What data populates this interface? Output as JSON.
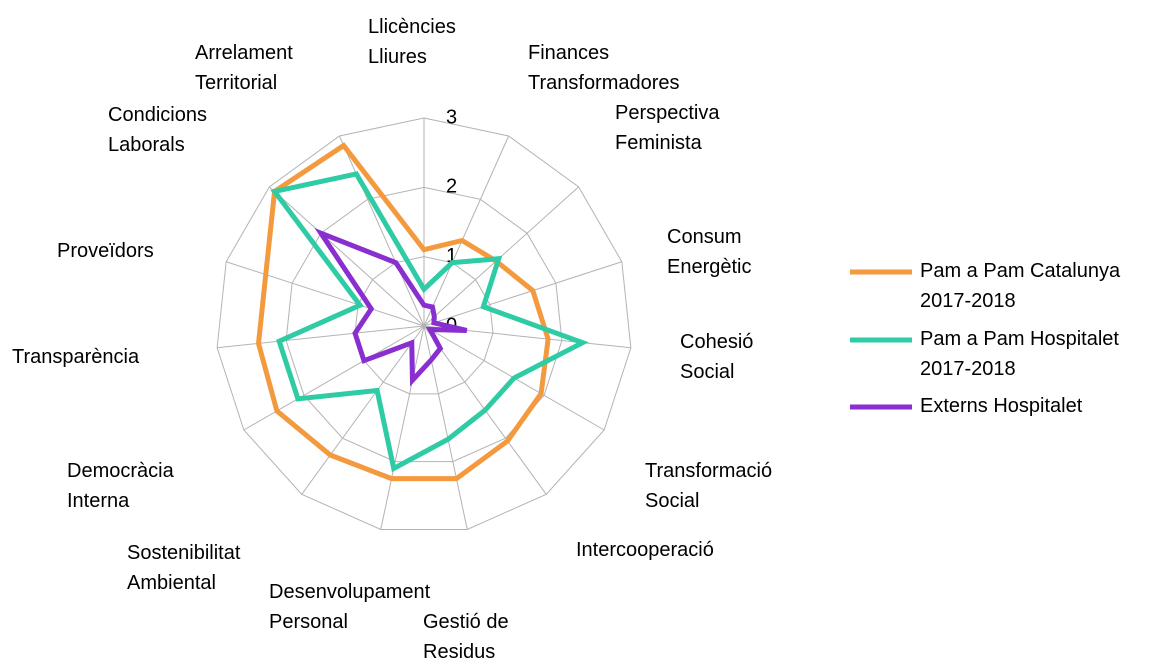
{
  "chart_data": {
    "type": "radar",
    "categories": [
      "Llicències Lliures",
      "Finances Transformadores",
      "Perspectiva Feminista",
      "Consum Energètic",
      "Cohesió Social",
      "Transformació Social",
      "Intercooperació",
      "Gestió de Residus",
      "Desenvolupament Personal",
      "Sostenibilitat Ambiental",
      "Democràcia Interna",
      "Transparència",
      "Proveïdors",
      "Condicions Laborals",
      "Arrelament Territorial"
    ],
    "series": [
      {
        "name": "Pam a Pam Catalunya 2017-2018",
        "color": "#f39a3f",
        "values": [
          1.1,
          1.35,
          1.4,
          1.65,
          1.8,
          1.95,
          2.05,
          2.25,
          2.25,
          2.3,
          2.45,
          2.4,
          2.4,
          2.9,
          2.85
        ]
      },
      {
        "name": "Pam a Pam Hospitalet 2017-2018",
        "color": "#2ecba5",
        "values": [
          0.53,
          1.0,
          1.45,
          0.9,
          2.3,
          1.5,
          1.5,
          1.67,
          2.1,
          1.15,
          2.1,
          2.1,
          0.97,
          2.9,
          2.4
        ]
      },
      {
        "name": "Externs Hospitalet",
        "color": "#8a2fcf",
        "values": [
          0.3,
          0.3,
          0.2,
          0.15,
          0.62,
          0.1,
          0.4,
          0.5,
          0.8,
          0.3,
          1.0,
          1.0,
          0.8,
          2.0,
          1.0
        ]
      }
    ],
    "rlim": [
      0,
      3
    ],
    "rticks": [
      0,
      1,
      2,
      3
    ],
    "grid": true,
    "legend": "right"
  }
}
